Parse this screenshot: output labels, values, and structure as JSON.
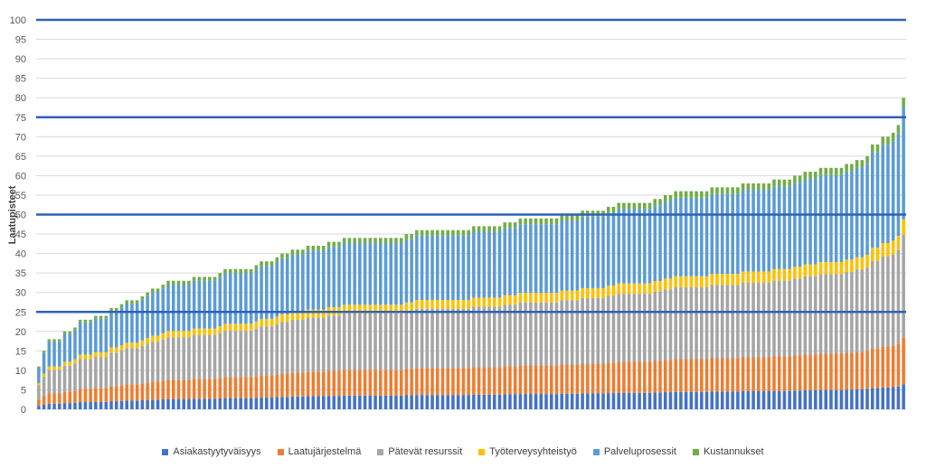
{
  "colors": {
    "Asiakastyytyväisyys": "#4472C4",
    "Laatujärjestelmä": "#ED7D31",
    "Pätevät resurssit": "#A5A5A5",
    "Työterveysyhteistyö": "#FFC000",
    "Palveluprosessit": "#5B9BD5",
    "Kustannukset": "#70AD47",
    "gridline": "#D9D9D9",
    "reference_line": "#2E62B8"
  },
  "chart_data": {
    "type": "bar",
    "stacked": true,
    "title": "",
    "xlabel": "",
    "ylabel": "Laatupisteet",
    "ylim": [
      0,
      100
    ],
    "yticks": [
      0,
      5,
      10,
      15,
      20,
      25,
      30,
      35,
      40,
      45,
      50,
      55,
      60,
      65,
      70,
      75,
      80,
      85,
      90,
      95,
      100
    ],
    "grid": true,
    "legend_position": "bottom",
    "reference_lines": [
      25,
      50,
      75,
      100
    ],
    "totals": [
      11,
      15,
      18,
      18,
      18,
      20,
      20,
      21,
      23,
      23,
      23,
      24,
      24,
      24,
      26,
      26,
      27,
      28,
      28,
      28,
      29,
      30,
      31,
      31,
      32,
      33,
      33,
      33,
      33,
      33,
      34,
      34,
      34,
      34,
      34,
      35,
      36,
      36,
      36,
      36,
      36,
      36,
      37,
      38,
      38,
      38,
      39,
      40,
      40,
      41,
      41,
      41,
      42,
      42,
      42,
      42,
      43,
      43,
      43,
      44,
      44,
      44,
      44,
      44,
      44,
      44,
      44,
      44,
      44,
      44,
      44,
      45,
      45,
      46,
      46,
      46,
      46,
      46,
      46,
      46,
      46,
      46,
      46,
      46,
      47,
      47,
      47,
      47,
      47,
      47,
      48,
      48,
      48,
      49,
      49,
      49,
      49,
      49,
      49,
      49,
      49,
      50,
      50,
      50,
      50,
      51,
      51,
      51,
      51,
      51,
      52,
      52,
      53,
      53,
      53,
      53,
      53,
      53,
      53,
      54,
      54,
      55,
      55,
      56,
      56,
      56,
      56,
      56,
      56,
      56,
      57,
      57,
      57,
      57,
      57,
      57,
      58,
      58,
      58,
      58,
      58,
      58,
      59,
      59,
      59,
      59,
      60,
      60,
      61,
      61,
      61,
      62,
      62,
      62,
      62,
      62,
      63,
      63,
      64,
      64,
      65,
      68,
      68,
      70,
      70,
      71,
      73,
      80
    ],
    "series": [
      {
        "name": "Asiakastyytyväisyys",
        "share": 0.08
      },
      {
        "name": "Laatujärjestelmä",
        "share": 0.15
      },
      {
        "name": "Pätevät resurssit",
        "share": 0.33
      },
      {
        "name": "Työterveysyhteistyö",
        "share": 0.05
      },
      {
        "name": "Palveluprosessit",
        "share": 0.36
      },
      {
        "name": "Kustannukset",
        "share": 0.03
      }
    ]
  }
}
